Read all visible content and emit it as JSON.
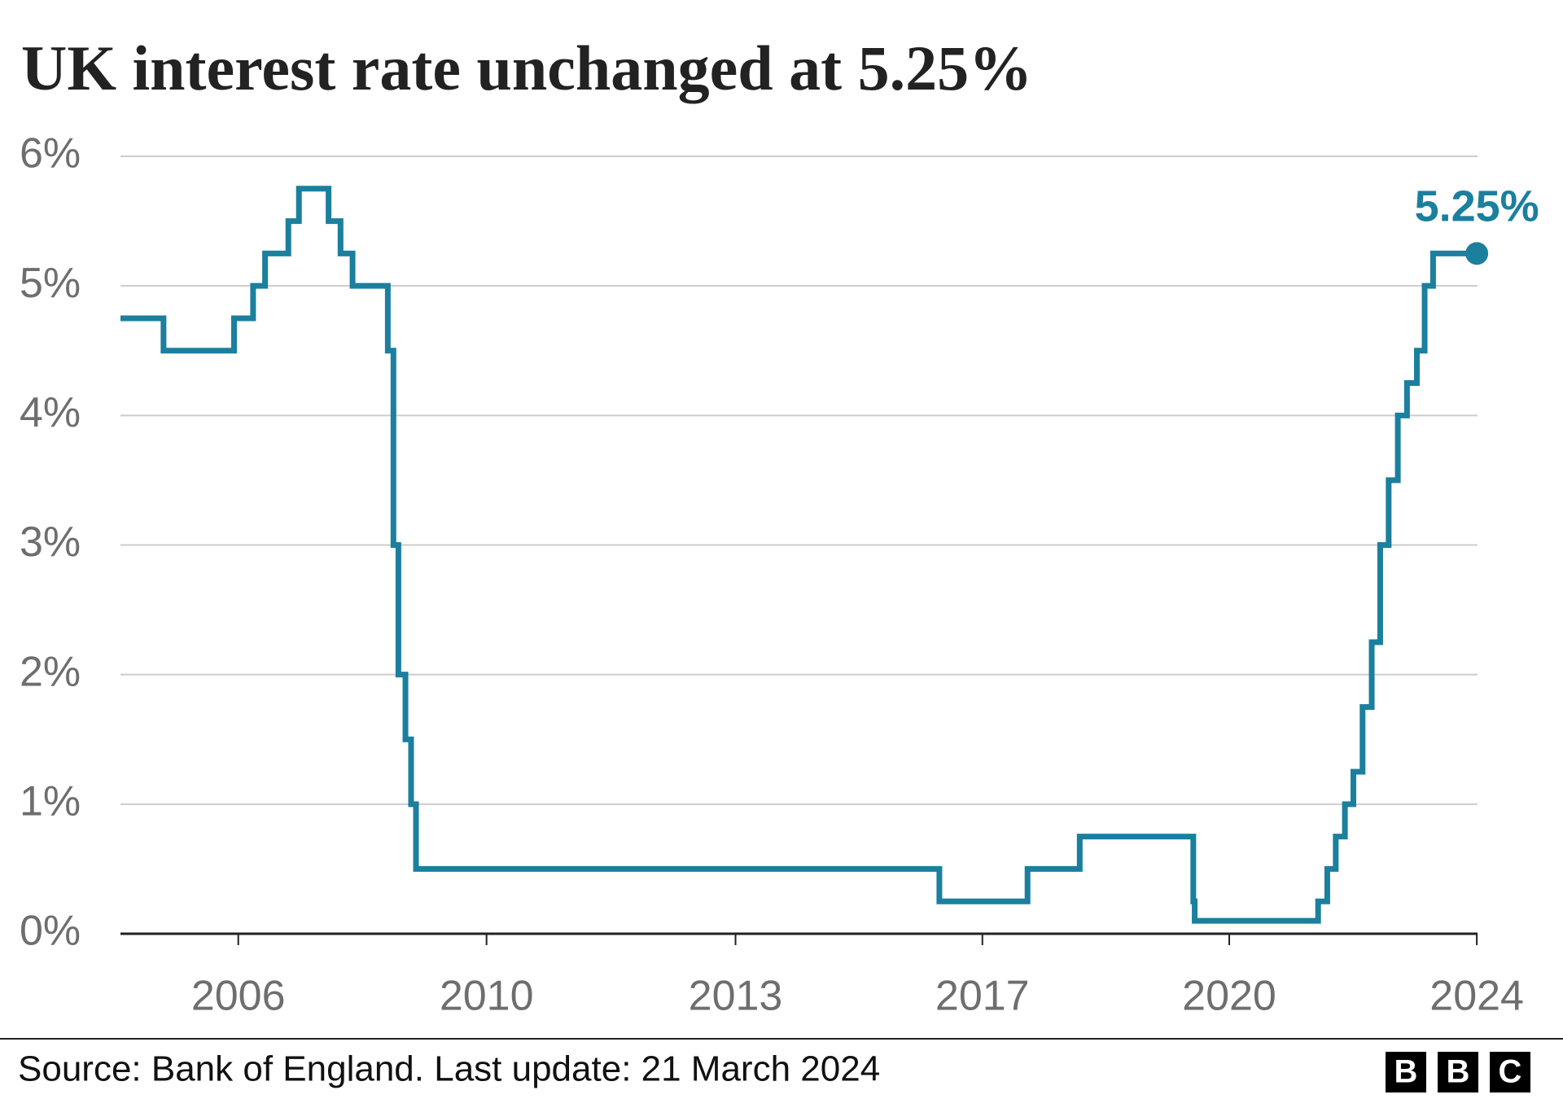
{
  "chart_data": {
    "type": "line",
    "step": "after",
    "title": "UK interest rate unchanged at 5.25%",
    "source": "Source: Bank of England. Last update: 21 March 2024",
    "logo": [
      "B",
      "B",
      "C"
    ],
    "x": [
      2004.98,
      2005.59,
      2006.59,
      2006.86,
      2007.03,
      2007.36,
      2007.51,
      2007.93,
      2008.1,
      2008.27,
      2008.77,
      2008.85,
      2008.92,
      2009.02,
      2009.1,
      2009.17,
      2016.59,
      2017.84,
      2018.58,
      2020.19,
      2020.21,
      2021.96,
      2022.09,
      2022.21,
      2022.34,
      2022.46,
      2022.59,
      2022.72,
      2022.84,
      2022.96,
      2023.09,
      2023.22,
      2023.36,
      2023.47,
      2023.59,
      2024.21
    ],
    "series": [
      {
        "color": "#1b7f9e",
        "values": [
          4.75,
          4.5,
          4.75,
          5.0,
          5.25,
          5.5,
          5.75,
          5.5,
          5.25,
          5.0,
          4.5,
          3.0,
          2.0,
          1.5,
          1.0,
          0.5,
          0.25,
          0.5,
          0.75,
          0.25,
          0.1,
          0.25,
          0.5,
          0.75,
          1.0,
          1.25,
          1.75,
          2.25,
          3.0,
          3.5,
          4.0,
          4.25,
          4.5,
          5.0,
          5.25,
          5.25
        ],
        "value_labels": [
          null,
          null,
          null,
          null,
          null,
          null,
          null,
          null,
          null,
          null,
          null,
          null,
          null,
          null,
          null,
          null,
          null,
          null,
          null,
          null,
          null,
          null,
          null,
          null,
          null,
          null,
          null,
          null,
          null,
          null,
          null,
          null,
          null,
          null,
          null,
          "5.25%"
        ]
      }
    ],
    "xlim": [
      2004.98,
      2024.22
    ],
    "xticks": [
      {
        "value": 2006.65,
        "label": "2006"
      },
      {
        "value": 2010.17,
        "label": "2010"
      },
      {
        "value": 2013.7,
        "label": "2013"
      },
      {
        "value": 2017.2,
        "label": "2017"
      },
      {
        "value": 2020.7,
        "label": "2020"
      },
      {
        "value": 2024.21,
        "label": "2024"
      }
    ],
    "ylim": [
      0,
      6
    ],
    "yticks": [
      {
        "value": 0,
        "label": "0%"
      },
      {
        "value": 1,
        "label": "1%"
      },
      {
        "value": 2,
        "label": "2%"
      },
      {
        "value": 3,
        "label": "3%"
      },
      {
        "value": 4,
        "label": "4%"
      },
      {
        "value": 5,
        "label": "5%"
      },
      {
        "value": 6,
        "label": "6%"
      }
    ],
    "grid": true
  }
}
